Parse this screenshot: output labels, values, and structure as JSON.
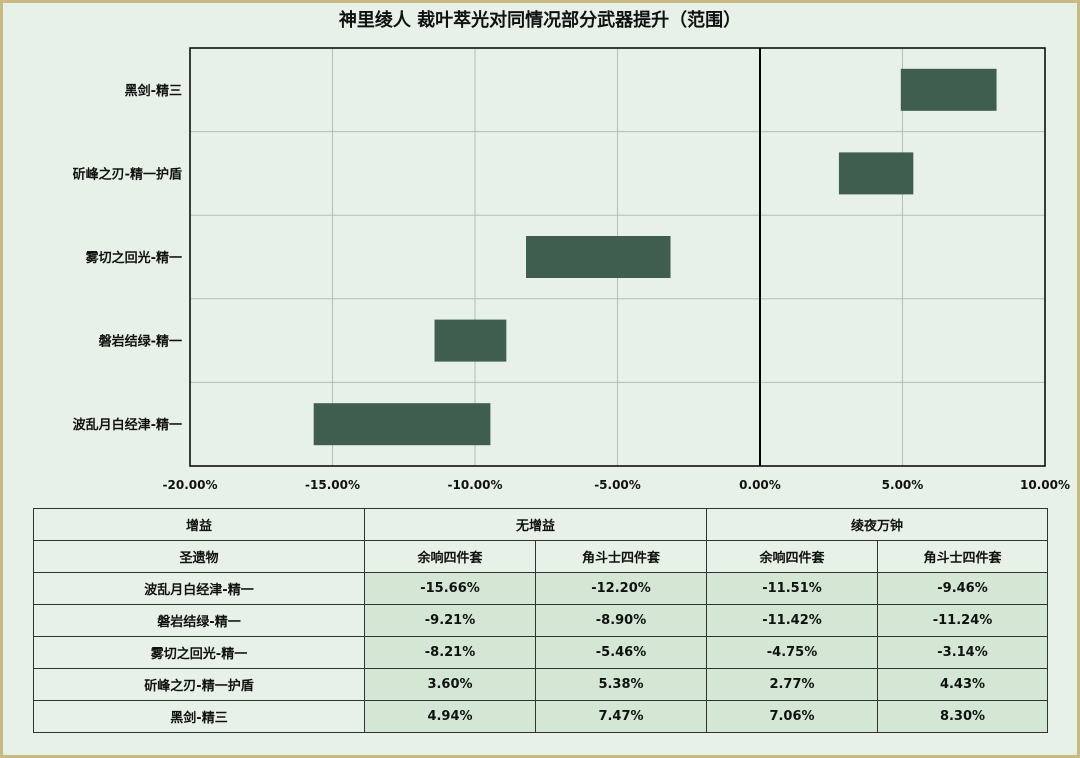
{
  "chart_data": {
    "type": "bar",
    "subtype": "floating-range-horizontal",
    "title": "神里绫人 裁叶萃光对同情况部分武器提升（范围）",
    "categories": [
      "黑剑-精三",
      "斫峰之刃-精一护盾",
      "雾切之回光-精一",
      "磐岩结绿-精一",
      "波乱月白经津-精一"
    ],
    "ranges": [
      [
        4.94,
        8.3
      ],
      [
        2.77,
        5.38
      ],
      [
        -8.21,
        -3.14
      ],
      [
        -11.42,
        -8.9
      ],
      [
        -15.66,
        -9.46
      ]
    ],
    "xlim": [
      -20,
      10
    ],
    "xticks": [
      "-20.00%",
      "-15.00%",
      "-10.00%",
      "-5.00%",
      "0.00%",
      "5.00%",
      "10.00%"
    ],
    "xtick_values": [
      -20,
      -15,
      -10,
      -5,
      0,
      5,
      10
    ],
    "bar_color": "#3f5e4d",
    "grid": true
  },
  "table": {
    "header1": [
      "增益",
      "无增益",
      "绫夜万钟"
    ],
    "header2": [
      "圣遗物",
      "余响四件套",
      "角斗士四件套",
      "余响四件套",
      "角斗士四件套"
    ],
    "rows": [
      [
        "波乱月白经津-精一",
        "-15.66%",
        "-12.20%",
        "-11.51%",
        "-9.46%"
      ],
      [
        "磐岩结绿-精一",
        "-9.21%",
        "-8.90%",
        "-11.42%",
        "-11.24%"
      ],
      [
        "雾切之回光-精一",
        "-8.21%",
        "-5.46%",
        "-4.75%",
        "-3.14%"
      ],
      [
        "斫峰之刃-精一护盾",
        "3.60%",
        "5.38%",
        "2.77%",
        "4.43%"
      ],
      [
        "黑剑-精三",
        "4.94%",
        "7.47%",
        "7.06%",
        "8.30%"
      ]
    ]
  }
}
